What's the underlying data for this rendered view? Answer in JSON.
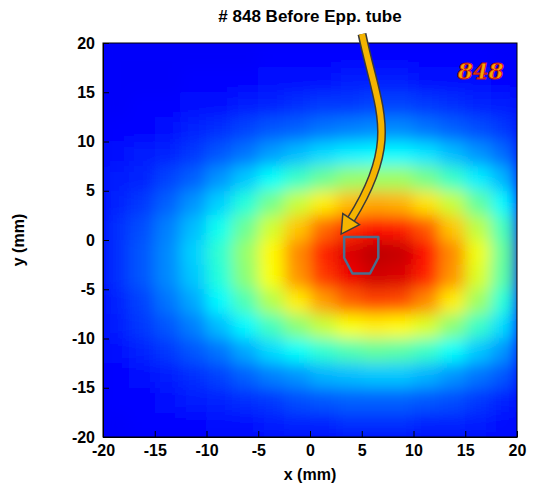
{
  "chart_data": {
    "type": "heatmap",
    "title": "# 848 Before Epp. tube",
    "x_label": "x (mm)",
    "y_label": "y (mm)",
    "x": [
      -18.75,
      -16.25,
      -13.75,
      -11.25,
      -8.75,
      -6.25,
      -3.75,
      -1.25,
      1.25,
      3.75,
      6.25,
      8.75,
      11.25,
      13.75,
      16.25,
      18.75
    ],
    "y": [
      18.75,
      16.25,
      13.75,
      11.25,
      8.75,
      6.25,
      3.75,
      1.25,
      -1.25,
      -3.75,
      -6.25,
      -8.75,
      -11.25,
      -13.75,
      -16.25,
      -18.75
    ],
    "cells": [
      [
        0.12,
        0.12,
        0.12,
        0.12,
        0.12,
        0.12,
        0.13,
        0.13,
        0.13,
        0.13,
        0.13,
        0.13,
        0.13,
        0.13,
        0.13,
        0.12
      ],
      [
        0.12,
        0.12,
        0.12,
        0.13,
        0.13,
        0.13,
        0.14,
        0.14,
        0.14,
        0.15,
        0.15,
        0.15,
        0.14,
        0.14,
        0.14,
        0.13
      ],
      [
        0.12,
        0.13,
        0.13,
        0.14,
        0.14,
        0.15,
        0.16,
        0.17,
        0.18,
        0.18,
        0.19,
        0.19,
        0.18,
        0.17,
        0.16,
        0.15
      ],
      [
        0.13,
        0.13,
        0.14,
        0.16,
        0.17,
        0.19,
        0.21,
        0.22,
        0.24,
        0.25,
        0.26,
        0.26,
        0.24,
        0.22,
        0.2,
        0.18
      ],
      [
        0.14,
        0.15,
        0.16,
        0.18,
        0.21,
        0.24,
        0.28,
        0.31,
        0.34,
        0.36,
        0.37,
        0.37,
        0.35,
        0.31,
        0.27,
        0.23
      ],
      [
        0.15,
        0.16,
        0.19,
        0.22,
        0.27,
        0.32,
        0.38,
        0.43,
        0.48,
        0.52,
        0.53,
        0.53,
        0.49,
        0.43,
        0.36,
        0.3
      ],
      [
        0.16,
        0.18,
        0.22,
        0.27,
        0.33,
        0.41,
        0.49,
        0.57,
        0.64,
        0.69,
        0.71,
        0.7,
        0.65,
        0.57,
        0.47,
        0.37
      ],
      [
        0.17,
        0.2,
        0.25,
        0.31,
        0.39,
        0.48,
        0.58,
        0.68,
        0.77,
        0.83,
        0.86,
        0.85,
        0.79,
        0.68,
        0.56,
        0.44
      ],
      [
        0.17,
        0.21,
        0.26,
        0.33,
        0.42,
        0.52,
        0.63,
        0.74,
        0.84,
        0.91,
        0.94,
        0.93,
        0.86,
        0.74,
        0.61,
        0.47
      ],
      [
        0.17,
        0.21,
        0.26,
        0.32,
        0.41,
        0.51,
        0.62,
        0.73,
        0.82,
        0.89,
        0.92,
        0.91,
        0.84,
        0.73,
        0.59,
        0.46
      ],
      [
        0.16,
        0.19,
        0.24,
        0.29,
        0.37,
        0.45,
        0.55,
        0.64,
        0.72,
        0.78,
        0.81,
        0.8,
        0.74,
        0.64,
        0.53,
        0.41
      ],
      [
        0.15,
        0.18,
        0.21,
        0.25,
        0.31,
        0.37,
        0.44,
        0.51,
        0.57,
        0.62,
        0.64,
        0.63,
        0.59,
        0.51,
        0.43,
        0.34
      ],
      [
        0.14,
        0.16,
        0.18,
        0.21,
        0.24,
        0.29,
        0.34,
        0.38,
        0.42,
        0.45,
        0.47,
        0.46,
        0.43,
        0.38,
        0.32,
        0.27
      ],
      [
        0.13,
        0.14,
        0.15,
        0.17,
        0.19,
        0.22,
        0.25,
        0.27,
        0.3,
        0.31,
        0.32,
        0.32,
        0.3,
        0.27,
        0.24,
        0.21
      ],
      [
        0.13,
        0.13,
        0.14,
        0.15,
        0.16,
        0.17,
        0.18,
        0.2,
        0.21,
        0.22,
        0.22,
        0.22,
        0.21,
        0.2,
        0.18,
        0.16
      ],
      [
        0.12,
        0.13,
        0.13,
        0.13,
        0.14,
        0.14,
        0.15,
        0.16,
        0.16,
        0.17,
        0.17,
        0.17,
        0.16,
        0.16,
        0.15,
        0.14
      ]
    ],
    "zlim": [
      0,
      1
    ],
    "xlim": [
      -20,
      20
    ],
    "ylim": [
      -20,
      20
    ],
    "xticks": [
      -20,
      -15,
      -10,
      -5,
      0,
      5,
      10,
      15,
      20
    ],
    "yticks": [
      -20,
      -15,
      -10,
      -5,
      0,
      5,
      10,
      15,
      20
    ],
    "outline": {
      "x": [
        3.3,
        6.6,
        6.6,
        5.8,
        4.1,
        3.3
      ],
      "y": [
        0.3,
        0.3,
        -1.8,
        -3.4,
        -3.4,
        -1.8
      ]
    },
    "annotations": [
      {
        "text": "848",
        "x": 16.5,
        "y": 17
      }
    ]
  }
}
